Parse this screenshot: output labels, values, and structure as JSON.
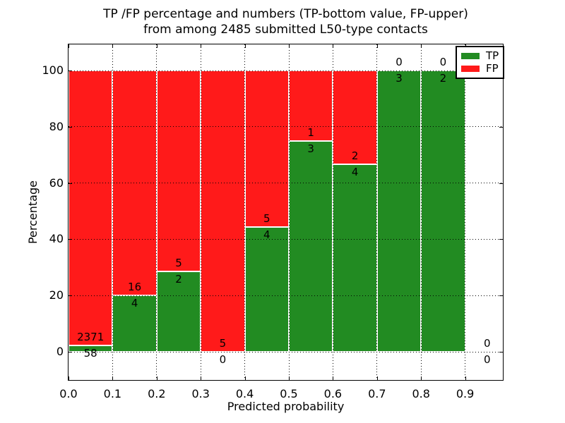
{
  "title": {
    "line1": "TP /FP percentage and numbers (TP-bottom value, FP-upper)",
    "line2": "from among 2485 submitted L50-type contacts"
  },
  "axes": {
    "xlabel": "Predicted probability",
    "ylabel": "Percentage"
  },
  "legend": {
    "items": [
      {
        "label": "TP",
        "color": "#228b22"
      },
      {
        "label": "FP",
        "color": "#ff1a1a"
      }
    ]
  },
  "chart_data": {
    "type": "bar",
    "subtype": "stacked-normalized-percentage",
    "title": "TP /FP percentage and numbers (TP-bottom value, FP-upper) from among 2485 submitted L50-type contacts",
    "xlabel": "Predicted probability",
    "ylabel": "Percentage",
    "total_submitted": 2485,
    "bin_width": 0.1,
    "categories": [
      "0.0-0.1",
      "0.1-0.2",
      "0.2-0.3",
      "0.3-0.4",
      "0.4-0.5",
      "0.5-0.6",
      "0.6-0.7",
      "0.7-0.8",
      "0.8-0.9",
      "0.9-1.0"
    ],
    "x_tick_labels": [
      "0.0",
      "0.1",
      "0.2",
      "0.3",
      "0.4",
      "0.5",
      "0.6",
      "0.7",
      "0.8",
      "0.9"
    ],
    "y_tick_values": [
      0,
      20,
      40,
      60,
      80,
      100
    ],
    "y_tick_labels": [
      "0",
      "20",
      "40",
      "60",
      "80",
      "100"
    ],
    "ylim": [
      -10,
      109.5
    ],
    "xlim": [
      0.0,
      0.99
    ],
    "grid": "dotted-black-both-axes",
    "legend_position": "upper-right",
    "series": [
      {
        "name": "TP",
        "color": "#228b22",
        "counts": [
          58,
          4,
          2,
          0,
          4,
          3,
          4,
          3,
          2,
          0
        ]
      },
      {
        "name": "FP",
        "color": "#ff1a1a",
        "counts": [
          2371,
          16,
          5,
          5,
          5,
          1,
          2,
          0,
          0,
          0
        ]
      }
    ],
    "tp_percent_of_bin": [
      2.39,
      20.0,
      28.57,
      0.0,
      44.44,
      75.0,
      66.67,
      100.0,
      100.0,
      0.0
    ]
  }
}
